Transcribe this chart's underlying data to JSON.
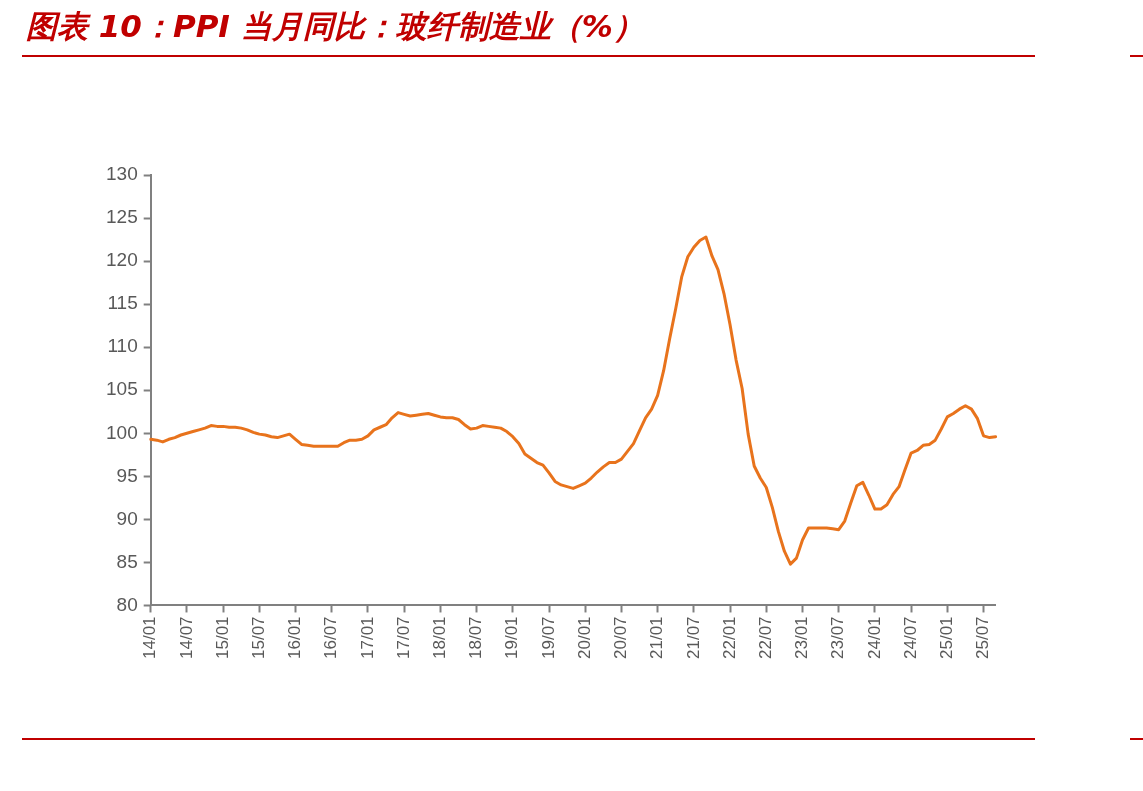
{
  "chart_data": {
    "type": "line",
    "title": "图表 10：PPI 当月同比：玻纤制造业（%）",
    "categories": [
      "14/01",
      null,
      null,
      null,
      null,
      null,
      "14/07",
      null,
      null,
      null,
      null,
      null,
      "15/01",
      null,
      null,
      null,
      null,
      null,
      "15/07",
      null,
      null,
      null,
      null,
      null,
      "16/01",
      null,
      null,
      null,
      null,
      null,
      "16/07",
      null,
      null,
      null,
      null,
      null,
      "17/01",
      null,
      null,
      null,
      null,
      null,
      "17/07",
      null,
      null,
      null,
      null,
      null,
      "18/01",
      null,
      null,
      null,
      null,
      null,
      "18/07",
      null,
      null,
      null,
      null,
      null,
      "19/01",
      null,
      null,
      null,
      null,
      null,
      "19/07",
      null,
      null,
      null,
      null,
      null,
      "20/01",
      null,
      null,
      null,
      null,
      null,
      "20/07",
      null,
      null,
      null,
      null,
      null,
      "21/01",
      null,
      null,
      null,
      null,
      null,
      "21/07",
      null,
      null,
      null,
      null,
      null,
      "22/01",
      null,
      null,
      null,
      null,
      null,
      "22/07",
      null,
      null,
      null,
      null,
      null,
      "23/01",
      null,
      null,
      null,
      null,
      null,
      "23/07",
      null,
      null,
      null,
      null,
      null,
      "24/01",
      null,
      null,
      null,
      null,
      null,
      "24/07",
      null,
      null,
      null,
      null,
      null,
      "25/01",
      null,
      null,
      null,
      null,
      null,
      "25/07",
      null,
      null
    ],
    "series": [
      {
        "color": "#e8731c",
        "values": [
          99.3,
          99.2,
          99.0,
          99.3,
          99.5,
          99.8,
          100.0,
          100.2,
          100.4,
          100.6,
          100.9,
          100.8,
          100.8,
          100.7,
          100.7,
          100.6,
          100.4,
          100.1,
          99.9,
          99.8,
          99.6,
          99.5,
          99.7,
          99.9,
          99.3,
          98.7,
          98.6,
          98.5,
          98.5,
          98.5,
          98.5,
          98.5,
          98.9,
          99.2,
          99.2,
          99.3,
          99.7,
          100.4,
          100.7,
          101.0,
          101.8,
          102.4,
          102.2,
          102.0,
          102.1,
          102.2,
          102.3,
          102.1,
          101.9,
          101.8,
          101.8,
          101.6,
          101.0,
          100.5,
          100.6,
          100.9,
          100.8,
          100.7,
          100.6,
          100.2,
          99.6,
          98.8,
          97.6,
          97.1,
          96.6,
          96.3,
          95.4,
          94.4,
          94.0,
          93.8,
          93.6,
          93.9,
          94.2,
          94.8,
          95.5,
          96.1,
          96.6,
          96.6,
          97.0,
          97.9,
          98.8,
          100.3,
          101.8,
          102.8,
          104.4,
          107.3,
          111.0,
          114.5,
          118.2,
          120.5,
          121.6,
          122.4,
          122.8,
          120.6,
          119.0,
          116.2,
          112.6,
          108.5,
          105.2,
          99.9,
          96.2,
          94.8,
          93.7,
          91.4,
          88.6,
          86.3,
          84.8,
          85.5,
          87.6,
          89.0,
          89.0,
          89.0,
          89.0,
          88.9,
          88.8,
          89.8,
          91.9,
          93.9,
          94.3,
          92.8,
          91.2,
          91.2,
          91.7,
          92.9,
          93.8,
          95.8,
          97.7,
          98.0,
          98.6,
          98.7,
          99.2,
          100.5,
          101.9,
          102.3,
          102.8,
          103.2,
          102.8,
          101.7,
          99.7,
          99.5,
          99.6
        ]
      }
    ],
    "ylim": [
      80,
      130
    ],
    "yticks": [
      80,
      85,
      90,
      95,
      100,
      105,
      110,
      115,
      120,
      125,
      130
    ],
    "grid": false,
    "legend": false,
    "marker": "none",
    "line_style": "solid"
  }
}
